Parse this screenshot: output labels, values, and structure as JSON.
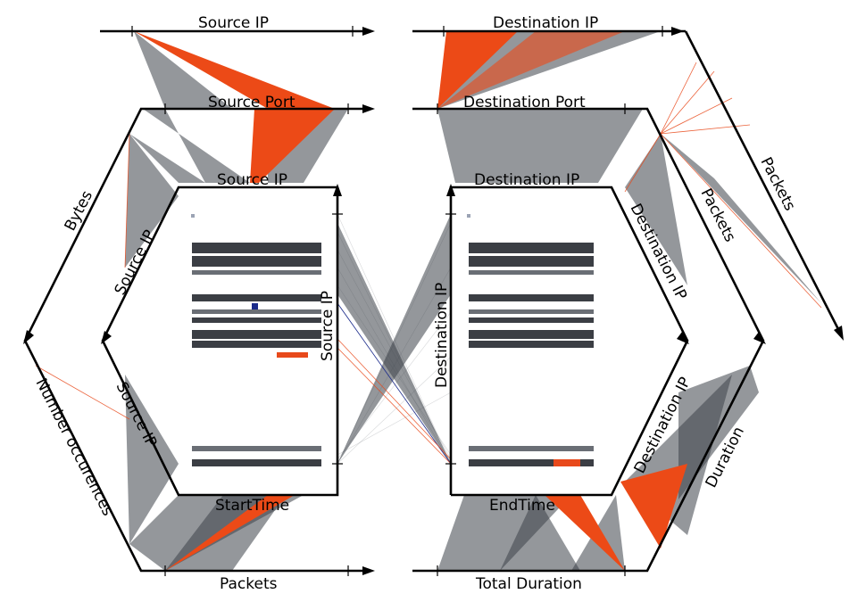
{
  "colors": {
    "axis": "#000000",
    "grey_lines": "#4a4f57",
    "highlight": "#e8491b",
    "dot_blue": "#1a2a8a",
    "background": "#ffffff"
  },
  "labels": {
    "top_left_source_ip": "Source IP",
    "top_right_destination_ip": "Destination IP",
    "left_source_port": "Source Port",
    "right_destination_port": "Destination Port",
    "inner_left_source_ip": "Source IP",
    "inner_right_destination_ip": "Destination IP",
    "bytes": "Bytes",
    "left_hex_source_ip_upper": "Source IP",
    "left_hex_source_ip_lower": "Source IP",
    "number_occurences": "Number occurences",
    "packets_bottom": "Packets",
    "start_time": "StartTime",
    "center_source_ip": "Source IP",
    "center_destination_ip": "Destination IP",
    "end_time": "EndTime",
    "total_duration": "Total Duration",
    "right_hex_destination_ip_upper": "Destination IP",
    "right_hex_destination_ip_lower": "Destination IP",
    "packets_right": "Packets",
    "packets_far_right": "Packets",
    "duration": "Duration"
  }
}
